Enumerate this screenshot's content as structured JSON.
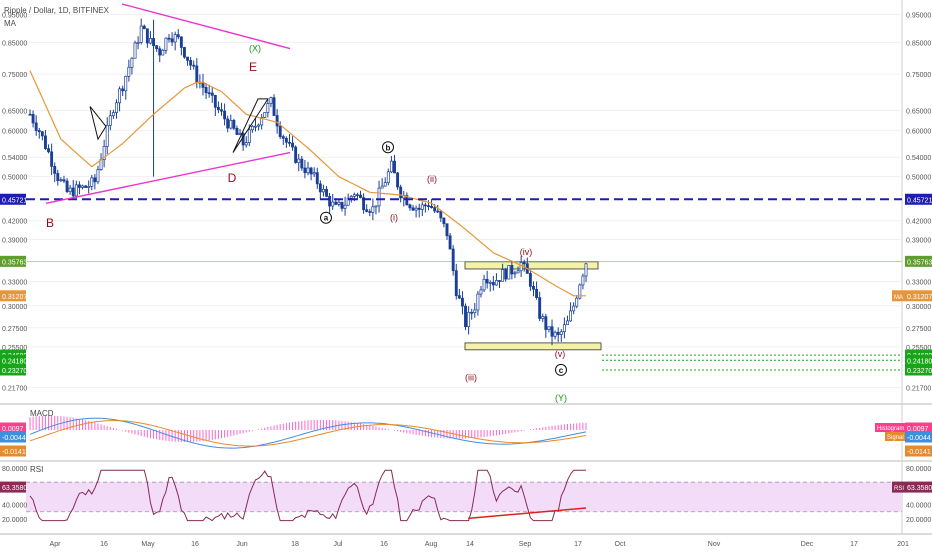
{
  "header": {
    "symbol_title": "Ripple / Dollar, 1D, BITFINEX",
    "ma_label": "MA"
  },
  "colors": {
    "candle": "#1a3f96",
    "ma_line": "#e6963a",
    "triangle": "#ee33cc",
    "dashed_level": "#1d1db0",
    "green_dotted": "#19a519",
    "label_red": "#8b0d1a",
    "label_green": "#119911",
    "zone_fill": "#f3f2a6",
    "zone_border": "#333333",
    "macd_line": "#3d8fe0",
    "signal_line": "#e68a2e",
    "histogram": "#ff66cc",
    "rsi_line": "#8a2a55",
    "rsi_band": "#f2dcf7",
    "rsi_trendline": "#e02020"
  },
  "price_axis": {
    "ticks": [
      "0.95000",
      "0.85000",
      "0.75000",
      "0.65000",
      "0.60000",
      "0.54000",
      "0.50000",
      "0.42000",
      "0.39000",
      "0.33000",
      "0.30000",
      "0.27500",
      "0.25500",
      "0.21700"
    ],
    "scale": "log"
  },
  "price_badges": [
    {
      "text": "0.45721",
      "color": "#1d1db0",
      "side": "both"
    },
    {
      "text": "0.35763",
      "color": "#5e9e2c",
      "side": "both"
    },
    {
      "text": "0.31207",
      "color": "#e6963a",
      "side": "both",
      "right_extra": "MA"
    },
    {
      "text": "0.24680",
      "color": "#19a519",
      "side": "both"
    },
    {
      "text": "0.24180",
      "color": "#19a519",
      "side": "both"
    },
    {
      "text": "0.23270",
      "color": "#19a519",
      "side": "both"
    }
  ],
  "time_axis": {
    "ticks": [
      "Apr",
      "16",
      "May",
      "16",
      "Jun",
      "18",
      "Jul",
      "16",
      "Aug",
      "14",
      "Sep",
      "17",
      "Oct",
      "Nov",
      "Dec",
      "17",
      "201"
    ]
  },
  "wave_labels": [
    {
      "text": "B",
      "color": "red"
    },
    {
      "text": "D",
      "color": "red"
    },
    {
      "text": "E",
      "color": "red"
    },
    {
      "text": "(X)",
      "color": "green"
    },
    {
      "text": "a",
      "color": "circle"
    },
    {
      "text": "b",
      "color": "circle"
    },
    {
      "text": "(i)",
      "color": "red"
    },
    {
      "text": "(ii)",
      "color": "red"
    },
    {
      "text": "(iii)",
      "color": "red"
    },
    {
      "text": "(iv)",
      "color": "red"
    },
    {
      "text": "(v)",
      "color": "red"
    },
    {
      "text": "c",
      "color": "circle"
    },
    {
      "text": "(Y)",
      "color": "green"
    }
  ],
  "macd_panel": {
    "label": "MACD",
    "badges": [
      {
        "text": "0.0097",
        "color": "#ff3d8b"
      },
      {
        "text": "-0.0044",
        "color": "#3d8fe0"
      },
      {
        "text": "-0.0141",
        "color": "#e68a2e"
      }
    ],
    "right_tags": [
      "Histogram",
      "Signal"
    ]
  },
  "rsi_panel": {
    "label": "RSI",
    "ticks": [
      "80.0000",
      "40.0000",
      "20.0000"
    ],
    "badge": {
      "text": "63.3580",
      "color": "#8a2a55"
    },
    "right_tag": "RSI"
  },
  "chart_data": {
    "type": "candlestick",
    "title": "Ripple / Dollar, 1D, BITFINEX",
    "y_scale": "log",
    "ylim": [
      0.205,
      0.99
    ],
    "x_period": [
      "Mar 2018",
      "Jan 2019"
    ],
    "close_path": [
      {
        "t": 0,
        "v": 0.64
      },
      {
        "t": 3,
        "v": 0.6
      },
      {
        "t": 6,
        "v": 0.55
      },
      {
        "t": 9,
        "v": 0.5
      },
      {
        "t": 12,
        "v": 0.47
      },
      {
        "t": 15,
        "v": 0.475
      },
      {
        "t": 18,
        "v": 0.48
      },
      {
        "t": 21,
        "v": 0.49
      },
      {
        "t": 24,
        "v": 0.57
      },
      {
        "t": 27,
        "v": 0.66
      },
      {
        "t": 30,
        "v": 0.72
      },
      {
        "t": 33,
        "v": 0.8
      },
      {
        "t": 36,
        "v": 0.9
      },
      {
        "t": 39,
        "v": 0.85
      },
      {
        "t": 42,
        "v": 0.82
      },
      {
        "t": 45,
        "v": 0.88
      },
      {
        "t": 48,
        "v": 0.86
      },
      {
        "t": 51,
        "v": 0.8
      },
      {
        "t": 54,
        "v": 0.74
      },
      {
        "t": 57,
        "v": 0.7
      },
      {
        "t": 60,
        "v": 0.66
      },
      {
        "t": 63,
        "v": 0.63
      },
      {
        "t": 66,
        "v": 0.6
      },
      {
        "t": 69,
        "v": 0.57
      },
      {
        "t": 72,
        "v": 0.6
      },
      {
        "t": 75,
        "v": 0.64
      },
      {
        "t": 78,
        "v": 0.67
      },
      {
        "t": 81,
        "v": 0.6
      },
      {
        "t": 84,
        "v": 0.56
      },
      {
        "t": 87,
        "v": 0.53
      },
      {
        "t": 90,
        "v": 0.51
      },
      {
        "t": 93,
        "v": 0.49
      },
      {
        "t": 96,
        "v": 0.46
      },
      {
        "t": 99,
        "v": 0.44
      },
      {
        "t": 102,
        "v": 0.45
      },
      {
        "t": 105,
        "v": 0.47
      },
      {
        "t": 108,
        "v": 0.45
      },
      {
        "t": 111,
        "v": 0.44
      },
      {
        "t": 114,
        "v": 0.48
      },
      {
        "t": 117,
        "v": 0.52
      },
      {
        "t": 120,
        "v": 0.47
      },
      {
        "t": 123,
        "v": 0.45
      },
      {
        "t": 126,
        "v": 0.44
      },
      {
        "t": 129,
        "v": 0.45
      },
      {
        "t": 132,
        "v": 0.43
      },
      {
        "t": 135,
        "v": 0.4
      },
      {
        "t": 138,
        "v": 0.32
      },
      {
        "t": 141,
        "v": 0.28
      },
      {
        "t": 144,
        "v": 0.3
      },
      {
        "t": 147,
        "v": 0.34
      },
      {
        "t": 150,
        "v": 0.33
      },
      {
        "t": 153,
        "v": 0.34
      },
      {
        "t": 156,
        "v": 0.345
      },
      {
        "t": 159,
        "v": 0.355
      },
      {
        "t": 162,
        "v": 0.33
      },
      {
        "t": 165,
        "v": 0.29
      },
      {
        "t": 168,
        "v": 0.27
      },
      {
        "t": 171,
        "v": 0.265
      },
      {
        "t": 174,
        "v": 0.28
      },
      {
        "t": 176,
        "v": 0.3
      },
      {
        "t": 178,
        "v": 0.33
      },
      {
        "t": 180,
        "v": 0.357
      }
    ],
    "ma_path": [
      {
        "t": 0,
        "v": 0.76
      },
      {
        "t": 10,
        "v": 0.58
      },
      {
        "t": 20,
        "v": 0.52
      },
      {
        "t": 30,
        "v": 0.57
      },
      {
        "t": 40,
        "v": 0.64
      },
      {
        "t": 50,
        "v": 0.71
      },
      {
        "t": 55,
        "v": 0.73
      },
      {
        "t": 62,
        "v": 0.7
      },
      {
        "t": 70,
        "v": 0.64
      },
      {
        "t": 80,
        "v": 0.62
      },
      {
        "t": 90,
        "v": 0.56
      },
      {
        "t": 100,
        "v": 0.5
      },
      {
        "t": 110,
        "v": 0.47
      },
      {
        "t": 120,
        "v": 0.465
      },
      {
        "t": 130,
        "v": 0.45
      },
      {
        "t": 140,
        "v": 0.41
      },
      {
        "t": 150,
        "v": 0.37
      },
      {
        "t": 160,
        "v": 0.35
      },
      {
        "t": 170,
        "v": 0.325
      },
      {
        "t": 176,
        "v": 0.312
      },
      {
        "t": 180,
        "v": 0.312
      }
    ],
    "levels": [
      {
        "name": "dashed",
        "value": 0.45721
      },
      {
        "name": "resistance",
        "value": 0.35763
      },
      {
        "name": "target1",
        "value": 0.2468
      },
      {
        "name": "target2",
        "value": 0.2418
      },
      {
        "name": "target3",
        "value": 0.2327
      }
    ],
    "zones": [
      {
        "low": 0.347,
        "high": 0.357
      },
      {
        "low": 0.252,
        "high": 0.259
      }
    ],
    "macd": {
      "macd": -0.0044,
      "signal": -0.0141,
      "histogram": 0.0097
    },
    "rsi": {
      "last": 63.358,
      "band": [
        30,
        70
      ]
    }
  }
}
